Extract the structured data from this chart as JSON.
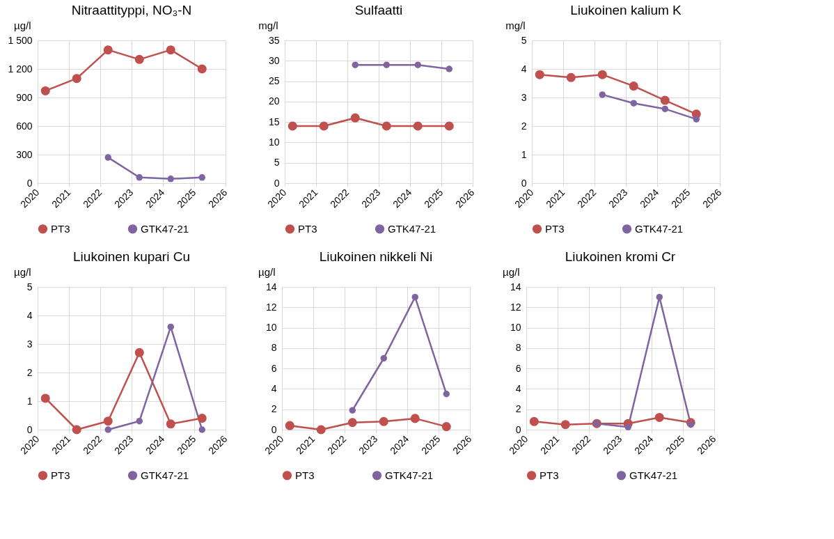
{
  "chart_data": [
    {
      "type": "line",
      "title": "Nitraattityppi, NO₃-N",
      "ylabel": "µg/l",
      "x": [
        2020.25,
        2021.25,
        2022.25,
        2023.25,
        2024.25,
        2025.25
      ],
      "xlim": [
        2020,
        2026
      ],
      "xticks": [
        2020,
        2021,
        2022,
        2023,
        2024,
        2025,
        2026
      ],
      "ylim": [
        0,
        1500
      ],
      "yticks": [
        0,
        300,
        600,
        900,
        {
          "value": 1200,
          "label": "1 200"
        },
        {
          "value": 1500,
          "label": "1 500"
        }
      ],
      "grid": true,
      "legend": "bottom",
      "marker": "circle",
      "series": [
        {
          "name": "PT3",
          "color": "#c0504d",
          "values": [
            970,
            1100,
            1400,
            1300,
            1400,
            1200
          ]
        },
        {
          "name": "GTK47-21",
          "color": "#8064a2",
          "values": [
            null,
            null,
            270,
            60,
            45,
            60
          ]
        }
      ]
    },
    {
      "type": "line",
      "title": "Sulfaatti",
      "ylabel": "mg/l",
      "x": [
        2020.25,
        2021.25,
        2022.25,
        2023.25,
        2024.25,
        2025.25
      ],
      "xlim": [
        2020,
        2026
      ],
      "xticks": [
        2020,
        2021,
        2022,
        2023,
        2024,
        2025,
        2026
      ],
      "ylim": [
        0,
        35
      ],
      "yticks": [
        0,
        5,
        10,
        15,
        20,
        25,
        30,
        35
      ],
      "grid": true,
      "legend": "bottom",
      "marker": "circle",
      "series": [
        {
          "name": "PT3",
          "color": "#c0504d",
          "values": [
            14,
            14,
            16,
            14,
            14,
            14
          ]
        },
        {
          "name": "GTK47-21",
          "color": "#8064a2",
          "values": [
            null,
            null,
            29,
            29,
            29,
            28
          ]
        }
      ]
    },
    {
      "type": "line",
      "title": "Liukoinen kalium K",
      "ylabel": "mg/l",
      "x": [
        2020.25,
        2021.25,
        2022.25,
        2023.25,
        2024.25,
        2025.25
      ],
      "xlim": [
        2020,
        2026
      ],
      "xticks": [
        2020,
        2021,
        2022,
        2023,
        2024,
        2025,
        2026
      ],
      "ylim": [
        0,
        5
      ],
      "yticks": [
        0,
        1,
        2,
        3,
        4,
        5
      ],
      "grid": true,
      "legend": "bottom",
      "marker": "circle",
      "series": [
        {
          "name": "PT3",
          "color": "#c0504d",
          "values": [
            3.8,
            3.7,
            3.8,
            3.4,
            2.9,
            2.42
          ]
        },
        {
          "name": "GTK47-21",
          "color": "#8064a2",
          "values": [
            null,
            null,
            3.1,
            2.8,
            2.6,
            2.24
          ]
        }
      ]
    },
    {
      "type": "line",
      "title": "Liukoinen kupari Cu",
      "ylabel": "µg/l",
      "x": [
        2020.25,
        2021.25,
        2022.25,
        2023.25,
        2024.25,
        2025.25
      ],
      "xlim": [
        2020,
        2026
      ],
      "xticks": [
        2020,
        2021,
        2022,
        2023,
        2024,
        2025,
        2026
      ],
      "ylim": [
        0,
        5
      ],
      "yticks": [
        0,
        1,
        2,
        3,
        4,
        5
      ],
      "grid": true,
      "legend": "bottom",
      "marker": "circle",
      "series": [
        {
          "name": "PT3",
          "color": "#c0504d",
          "values": [
            1.1,
            0,
            0.3,
            2.7,
            0.2,
            0.4
          ]
        },
        {
          "name": "GTK47-21",
          "color": "#8064a2",
          "values": [
            null,
            null,
            0,
            0.3,
            3.6,
            0
          ]
        }
      ]
    },
    {
      "type": "line",
      "title": "Liukoinen nikkeli Ni",
      "ylabel": "µg/l",
      "x": [
        2020.25,
        2021.25,
        2022.25,
        2023.25,
        2024.25,
        2025.25
      ],
      "xlim": [
        2020,
        2026
      ],
      "xticks": [
        2020,
        2021,
        2022,
        2023,
        2024,
        2025,
        2026
      ],
      "ylim": [
        0,
        14
      ],
      "yticks": [
        0,
        2,
        4,
        6,
        8,
        10,
        12,
        14
      ],
      "grid": true,
      "legend": "bottom",
      "marker": "circle",
      "series": [
        {
          "name": "PT3",
          "color": "#c0504d",
          "values": [
            0.4,
            0,
            0.7,
            0.8,
            1.1,
            0.3
          ]
        },
        {
          "name": "GTK47-21",
          "color": "#8064a2",
          "values": [
            null,
            null,
            1.9,
            7,
            13,
            3.5
          ]
        }
      ]
    },
    {
      "type": "line",
      "title": "Liukoinen kromi Cr",
      "ylabel": "µg/l",
      "x": [
        2020.25,
        2021.25,
        2022.25,
        2023.25,
        2024.25,
        2025.25
      ],
      "xlim": [
        2020,
        2026
      ],
      "xticks": [
        2020,
        2021,
        2022,
        2023,
        2024,
        2025,
        2026
      ],
      "ylim": [
        0,
        14
      ],
      "yticks": [
        0,
        2,
        4,
        6,
        8,
        10,
        12,
        14
      ],
      "grid": true,
      "legend": "bottom",
      "marker": "circle",
      "series": [
        {
          "name": "PT3",
          "color": "#c0504d",
          "values": [
            0.8,
            0.5,
            0.6,
            0.6,
            1.2,
            0.7
          ]
        },
        {
          "name": "GTK47-21",
          "color": "#8064a2",
          "values": [
            null,
            null,
            0.6,
            0.25,
            13,
            0.5
          ]
        }
      ]
    }
  ]
}
